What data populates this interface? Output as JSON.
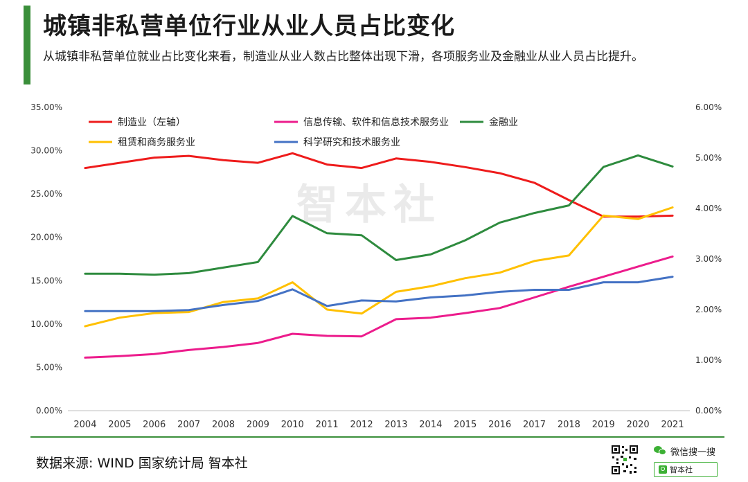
{
  "header": {
    "title": "城镇非私营单位行业从业人员占比变化",
    "subtitle": "从城镇非私营单位就业占比变化来看，制造业从业人数占比整体出现下滑，各项服务业及金融业从业人员占比提升。"
  },
  "watermark": "智本社",
  "footer": {
    "source": "数据来源: WIND 国家统计局 智本社",
    "wechat_label": "微信搜一搜",
    "search_text": "智本社"
  },
  "colors": {
    "accent": "#3a8f3a",
    "manufacturing": "#ee1c1c",
    "it": "#ec1c8c",
    "finance": "#2e8b3e",
    "rental": "#ffc000",
    "science": "#4472c4"
  },
  "icons": {
    "qr": "qr-code-icon",
    "wechat": "wechat-icon",
    "search": "search-icon"
  },
  "chart_data": {
    "type": "line",
    "x": [
      "2004",
      "2005",
      "2006",
      "2007",
      "2008",
      "2009",
      "2010",
      "2011",
      "2012",
      "2013",
      "2014",
      "2015",
      "2016",
      "2017",
      "2018",
      "2019",
      "2020",
      "2021"
    ],
    "left_axis": {
      "range": [
        0,
        35
      ],
      "ticks": [
        "0.00%",
        "5.00%",
        "10.00%",
        "15.00%",
        "20.00%",
        "25.00%",
        "30.00%",
        "35.00%"
      ]
    },
    "right_axis": {
      "range": [
        0,
        6
      ],
      "ticks": [
        "0.00%",
        "1.00%",
        "2.00%",
        "3.00%",
        "4.00%",
        "5.00%",
        "6.00%"
      ]
    },
    "grid": false,
    "legend_position": "top",
    "series": [
      {
        "name": "制造业（左轴）",
        "axis": "left",
        "color": "#ee1c1c",
        "values": [
          28.0,
          28.6,
          29.2,
          29.4,
          28.9,
          28.6,
          29.7,
          28.4,
          28.0,
          29.1,
          28.7,
          28.1,
          27.4,
          26.3,
          24.3,
          22.4,
          22.4,
          22.5
        ]
      },
      {
        "name": "信息传输、软件和信息技术服务业",
        "axis": "right",
        "color": "#ec1c8c",
        "values": [
          1.05,
          1.08,
          1.12,
          1.2,
          1.26,
          1.34,
          1.52,
          1.48,
          1.47,
          1.81,
          1.84,
          1.93,
          2.03,
          2.24,
          2.45,
          2.65,
          2.85,
          3.05
        ]
      },
      {
        "name": "金融业",
        "axis": "right",
        "color": "#2e8b3e",
        "values": [
          2.71,
          2.71,
          2.69,
          2.72,
          2.83,
          2.94,
          3.85,
          3.51,
          3.47,
          2.98,
          3.09,
          3.37,
          3.72,
          3.91,
          4.06,
          4.82,
          5.05,
          4.83
        ]
      },
      {
        "name": "租赁和商务服务业",
        "axis": "right",
        "color": "#ffc000",
        "values": [
          1.67,
          1.84,
          1.93,
          1.95,
          2.15,
          2.22,
          2.54,
          2.0,
          1.92,
          2.35,
          2.46,
          2.62,
          2.73,
          2.96,
          3.07,
          3.86,
          3.79,
          4.02
        ]
      },
      {
        "name": "科学研究和技术服务业",
        "axis": "right",
        "color": "#4472c4",
        "values": [
          1.97,
          1.97,
          1.97,
          1.99,
          2.09,
          2.17,
          2.4,
          2.07,
          2.18,
          2.16,
          2.24,
          2.28,
          2.35,
          2.39,
          2.39,
          2.54,
          2.54,
          2.65
        ]
      }
    ]
  }
}
